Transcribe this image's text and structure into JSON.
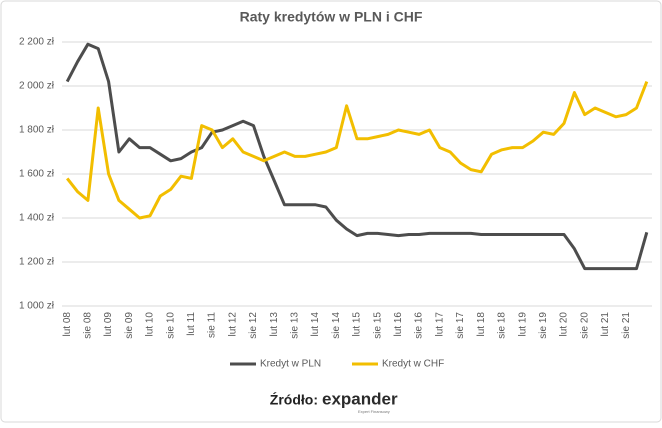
{
  "chart_data": {
    "type": "line",
    "title": "Raty kredytów w PLN i CHF",
    "categories": [
      "lut 08",
      null,
      "sie 08",
      null,
      "lut 09",
      null,
      "sie 09",
      null,
      "lut 10",
      null,
      "sie 10",
      null,
      "lut 11",
      null,
      "sie 11",
      null,
      "lut 12",
      null,
      "sie 12",
      null,
      "lut 13",
      null,
      "sie 13",
      null,
      "lut 14",
      null,
      "sie 14",
      null,
      "lut 15",
      null,
      "sie 15",
      null,
      "lut 16",
      null,
      "sie 16",
      null,
      "lut 17",
      null,
      "sie 17",
      null,
      "lut 18",
      null,
      "sie 18",
      null,
      "lut 19",
      null,
      "sie 19",
      null,
      "lut 20",
      null,
      "sie 20",
      null,
      "lut 21",
      null,
      "sie 21",
      null,
      null
    ],
    "series": [
      {
        "name": "Kredyt w PLN",
        "color": "#4d4d4d",
        "values": [
          2020,
          2110,
          2190,
          2170,
          2020,
          1700,
          1760,
          1720,
          1720,
          1690,
          1660,
          1670,
          1700,
          1720,
          1790,
          1800,
          1820,
          1840,
          1820,
          1680,
          1570,
          1460,
          1460,
          1460,
          1460,
          1450,
          1390,
          1350,
          1320,
          1330,
          1330,
          1325,
          1320,
          1325,
          1325,
          1330,
          1330,
          1330,
          1330,
          1330,
          1325,
          1325,
          1325,
          1325,
          1325,
          1325,
          1325,
          1325,
          1325,
          1260,
          1170,
          1170,
          1170,
          1170,
          1170,
          1170,
          1335
        ]
      },
      {
        "name": "Kredyt w CHF",
        "color": "#f2be00",
        "values": [
          1580,
          1520,
          1480,
          1900,
          1600,
          1480,
          1440,
          1400,
          1410,
          1500,
          1530,
          1590,
          1580,
          1820,
          1800,
          1720,
          1760,
          1700,
          1680,
          1660,
          1680,
          1700,
          1680,
          1680,
          1690,
          1700,
          1720,
          1910,
          1760,
          1760,
          1770,
          1780,
          1800,
          1790,
          1780,
          1800,
          1720,
          1700,
          1650,
          1620,
          1610,
          1690,
          1710,
          1720,
          1720,
          1750,
          1790,
          1780,
          1830,
          1970,
          1870,
          1900,
          1880,
          1860,
          1870,
          1900,
          2020
        ]
      }
    ],
    "ylim": [
      1000,
      2200
    ],
    "yticks": [
      {
        "value": 1000,
        "label": "1 000 zł"
      },
      {
        "value": 1200,
        "label": "1 200 zł"
      },
      {
        "value": 1400,
        "label": "1 400 zł"
      },
      {
        "value": 1600,
        "label": "1 600 zł"
      },
      {
        "value": 1800,
        "label": "1 800 zł"
      },
      {
        "value": 2000,
        "label": "2 000 zł"
      },
      {
        "value": 2200,
        "label": "2 200 zł"
      }
    ],
    "grid": true,
    "legend": "bottom"
  },
  "footer": {
    "source": "Źródło:",
    "logo": "expander",
    "logo_tagline": "Expert Finansowy"
  }
}
